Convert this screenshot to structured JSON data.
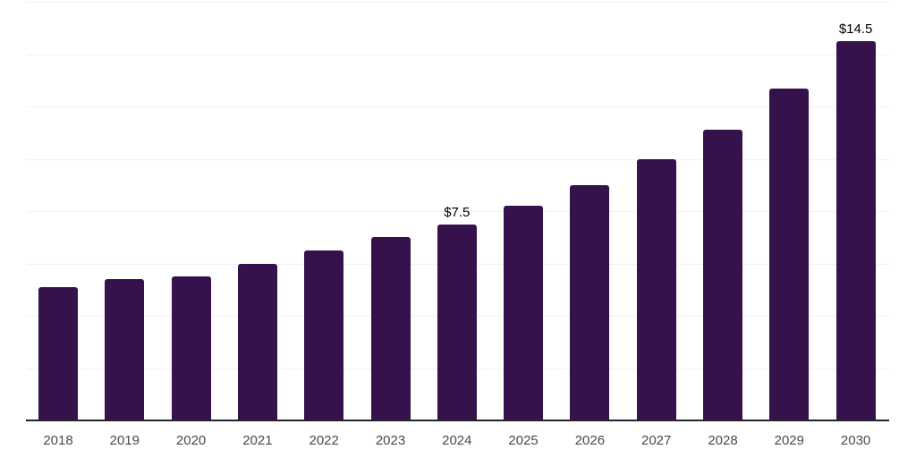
{
  "chart_data": {
    "type": "bar",
    "title": "",
    "xlabel": "",
    "ylabel": "",
    "categories": [
      "2018",
      "2019",
      "2020",
      "2021",
      "2022",
      "2023",
      "2024",
      "2025",
      "2026",
      "2027",
      "2028",
      "2029",
      "2030"
    ],
    "values": [
      5.1,
      5.4,
      5.5,
      6.0,
      6.5,
      7.0,
      7.5,
      8.2,
      9.0,
      10.0,
      11.1,
      12.7,
      14.5
    ],
    "point_labels": [
      "",
      "",
      "",
      "",
      "",
      "",
      "$7.5",
      "",
      "",
      "",
      "",
      "",
      "$14.5"
    ],
    "ylim": [
      0,
      16
    ],
    "gridline_step": 2,
    "grid": "horizontal-only",
    "legend": "none",
    "colors": {
      "bar": "#36124d",
      "axis_line": "#242428",
      "gridline": "#f2f2f3",
      "tick_label": "#4a4a4b",
      "point_label": "#000000",
      "background": "#ffffff"
    }
  }
}
